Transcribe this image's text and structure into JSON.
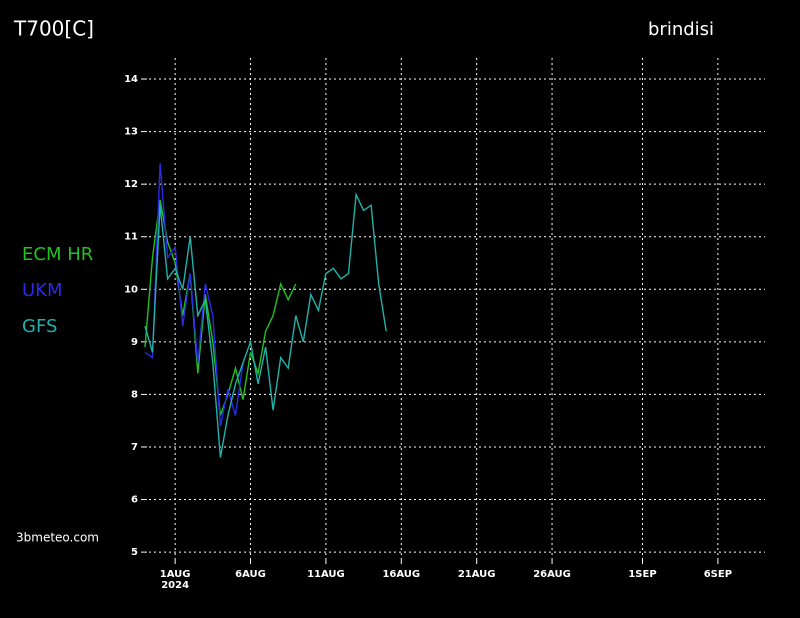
{
  "chart_data": {
    "type": "line",
    "title": "T700[C]",
    "subtitle": "brindisi",
    "source": "3bmeteo.com",
    "year_label": "2024",
    "x": [
      "2024-07-30 00:00",
      "2024-07-30 12:00",
      "2024-07-31 00:00",
      "2024-07-31 12:00",
      "2024-08-01 00:00",
      "2024-08-01 12:00",
      "2024-08-02 00:00",
      "2024-08-02 12:00",
      "2024-08-03 00:00",
      "2024-08-03 12:00",
      "2024-08-04 00:00",
      "2024-08-04 12:00",
      "2024-08-05 00:00",
      "2024-08-05 12:00",
      "2024-08-06 00:00",
      "2024-08-06 12:00",
      "2024-08-07 00:00",
      "2024-08-07 12:00",
      "2024-08-08 00:00",
      "2024-08-08 12:00",
      "2024-08-09 00:00",
      "2024-08-09 12:00",
      "2024-08-10 00:00",
      "2024-08-10 12:00",
      "2024-08-11 00:00",
      "2024-08-11 12:00",
      "2024-08-12 00:00",
      "2024-08-12 12:00",
      "2024-08-13 00:00",
      "2024-08-13 12:00",
      "2024-08-14 00:00",
      "2024-08-14 12:00",
      "2024-08-15 00:00"
    ],
    "series": [
      {
        "name": "ECM HR",
        "color": "#22c022",
        "values": [
          8.9,
          10.6,
          11.7,
          10.9,
          10.5,
          9.5,
          10.3,
          8.4,
          9.9,
          9.0,
          7.6,
          8.0,
          8.5,
          7.9,
          8.8,
          8.4,
          9.2,
          9.5,
          10.1,
          9.8,
          10.1,
          null,
          null,
          null,
          null,
          null,
          null,
          null,
          null,
          null,
          null,
          null,
          null
        ]
      },
      {
        "name": "UKM",
        "color": "#2a2ae6",
        "values": [
          8.8,
          8.7,
          12.4,
          10.6,
          10.8,
          9.3,
          10.3,
          8.6,
          10.1,
          9.5,
          7.4,
          8.1,
          7.6,
          8.6,
          null,
          null,
          null,
          null,
          null,
          null,
          null,
          null,
          null,
          null,
          null,
          null,
          null,
          null,
          null,
          null,
          null,
          null,
          null
        ]
      },
      {
        "name": "GFS",
        "color": "#20b2aa",
        "values": [
          9.3,
          8.8,
          11.6,
          10.2,
          10.4,
          10.0,
          11.0,
          9.5,
          9.8,
          8.6,
          6.8,
          7.6,
          8.2,
          8.6,
          9.0,
          8.2,
          8.9,
          7.7,
          8.7,
          8.5,
          9.5,
          9.0,
          9.9,
          9.6,
          10.3,
          10.4,
          10.2,
          10.3,
          11.8,
          11.5,
          11.6,
          10.1,
          9.2
        ]
      }
    ],
    "xlim": [
      "2024-07-30 00:00",
      "2024-09-09 03:00"
    ],
    "xticks": [
      {
        "value": "2024-08-01",
        "label": "1AUG"
      },
      {
        "value": "2024-08-06",
        "label": "6AUG"
      },
      {
        "value": "2024-08-11",
        "label": "11AUG"
      },
      {
        "value": "2024-08-16",
        "label": "16AUG"
      },
      {
        "value": "2024-08-21",
        "label": "21AUG"
      },
      {
        "value": "2024-08-26",
        "label": "26AUG"
      },
      {
        "value": "2024-09-01",
        "label": "1SEP"
      },
      {
        "value": "2024-09-06",
        "label": "6SEP"
      }
    ],
    "ylim": [
      4.85,
      14.4
    ],
    "yticks": [
      5,
      6,
      7,
      8,
      9,
      10,
      11,
      12,
      13,
      14
    ],
    "grid": true
  }
}
